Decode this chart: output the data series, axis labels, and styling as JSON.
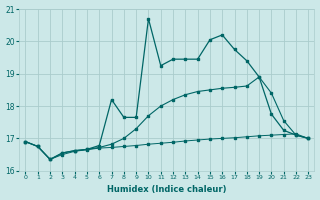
{
  "xlabel": "Humidex (Indice chaleur)",
  "bg_color": "#cce8e8",
  "grid_color": "#aacccc",
  "line_color": "#006666",
  "xlim": [
    -0.5,
    23.5
  ],
  "ylim": [
    16,
    21
  ],
  "yticks": [
    16,
    17,
    18,
    19,
    20,
    21
  ],
  "xticks": [
    0,
    1,
    2,
    3,
    4,
    5,
    6,
    7,
    8,
    9,
    10,
    11,
    12,
    13,
    14,
    15,
    16,
    17,
    18,
    19,
    20,
    21,
    22,
    23
  ],
  "line1_x": [
    0,
    1,
    2,
    3,
    4,
    5,
    6,
    7,
    8,
    9,
    10,
    11,
    12,
    13,
    14,
    15,
    16,
    17,
    18,
    19,
    20,
    21,
    22,
    23
  ],
  "line1_y": [
    16.9,
    16.75,
    16.35,
    16.5,
    16.6,
    16.65,
    16.7,
    16.72,
    16.75,
    16.78,
    16.82,
    16.85,
    16.88,
    16.92,
    16.95,
    16.98,
    17.0,
    17.02,
    17.05,
    17.08,
    17.1,
    17.12,
    17.14,
    17.0
  ],
  "line2_x": [
    0,
    1,
    2,
    3,
    4,
    5,
    6,
    7,
    8,
    9,
    10,
    11,
    12,
    13,
    14,
    15,
    16,
    17,
    18,
    19,
    20,
    21,
    22,
    23
  ],
  "line2_y": [
    16.9,
    16.75,
    16.35,
    16.55,
    16.62,
    16.66,
    16.72,
    16.82,
    17.0,
    17.3,
    17.7,
    18.0,
    18.2,
    18.35,
    18.45,
    18.5,
    18.55,
    18.58,
    18.62,
    18.9,
    18.4,
    17.55,
    17.1,
    17.0
  ],
  "line3_x": [
    0,
    1,
    2,
    3,
    4,
    5,
    6,
    7,
    8,
    9,
    10,
    11,
    12,
    13,
    14,
    15,
    16,
    17,
    18,
    19,
    20,
    21,
    22,
    23
  ],
  "line3_y": [
    16.9,
    16.75,
    16.35,
    16.55,
    16.62,
    16.66,
    16.78,
    18.2,
    17.65,
    17.65,
    20.7,
    19.25,
    19.45,
    19.45,
    19.45,
    20.05,
    20.2,
    19.75,
    19.4,
    18.9,
    17.75,
    17.25,
    17.1,
    17.0
  ]
}
